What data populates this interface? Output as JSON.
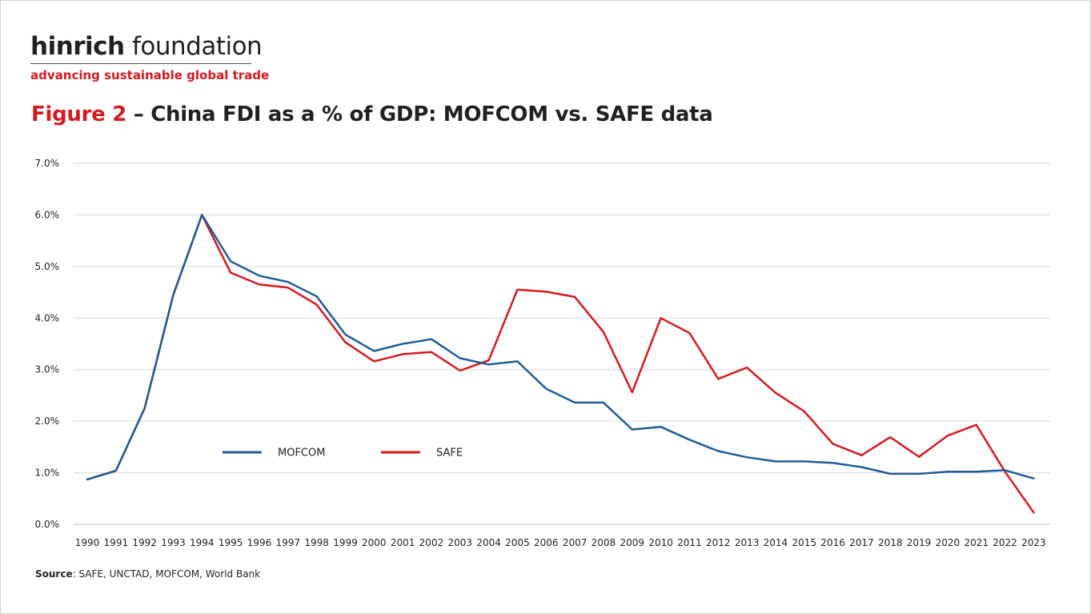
{
  "brand": {
    "name_bold": "hinrich",
    "name_rest": " foundation",
    "tagline": "advancing sustainable global trade"
  },
  "figure": {
    "number": "Figure 2",
    "title": " – China FDI as a % of GDP: MOFCOM vs. SAFE data"
  },
  "source": {
    "label": "Source",
    "text": ": SAFE, UNCTAD, MOFCOM, World Bank"
  },
  "colors": {
    "MOFCOM": "#1f5c99",
    "SAFE": "#d71920"
  },
  "chart_data": {
    "type": "line",
    "x": [
      "1990",
      "1991",
      "1992",
      "1993",
      "1994",
      "1995",
      "1996",
      "1997",
      "1998",
      "1999",
      "2000",
      "2001",
      "2002",
      "2003",
      "2004",
      "2005",
      "2006",
      "2007",
      "2008",
      "2009",
      "2010",
      "2011",
      "2012",
      "2013",
      "2014",
      "2015",
      "2016",
      "2017",
      "2018",
      "2019",
      "2020",
      "2021",
      "2022",
      "2023"
    ],
    "y_ticks": [
      "0.0%",
      "1.0%",
      "2.0%",
      "3.0%",
      "4.0%",
      "5.0%",
      "6.0%",
      "7.0%"
    ],
    "ylim": [
      0,
      7
    ],
    "grid": true,
    "legend": "inside-lower-left",
    "series": [
      {
        "name": "MOFCOM",
        "values": [
          0.87,
          1.04,
          2.25,
          4.45,
          6.0,
          5.1,
          4.82,
          4.7,
          4.42,
          3.68,
          3.36,
          3.5,
          3.59,
          3.22,
          3.1,
          3.16,
          2.63,
          2.36,
          2.36,
          1.84,
          1.89,
          1.64,
          1.42,
          1.3,
          1.22,
          1.22,
          1.19,
          1.11,
          0.98,
          0.98,
          1.02,
          1.02,
          1.05,
          0.89
        ]
      },
      {
        "name": "SAFE",
        "values": [
          0.87,
          1.04,
          2.25,
          4.45,
          6.0,
          4.88,
          4.65,
          4.59,
          4.26,
          3.53,
          3.16,
          3.3,
          3.34,
          2.98,
          3.18,
          4.55,
          4.51,
          4.41,
          3.73,
          2.56,
          4.0,
          3.71,
          2.82,
          3.04,
          2.55,
          2.19,
          1.56,
          1.34,
          1.69,
          1.31,
          1.72,
          1.93,
          1.02,
          0.23
        ]
      }
    ]
  }
}
